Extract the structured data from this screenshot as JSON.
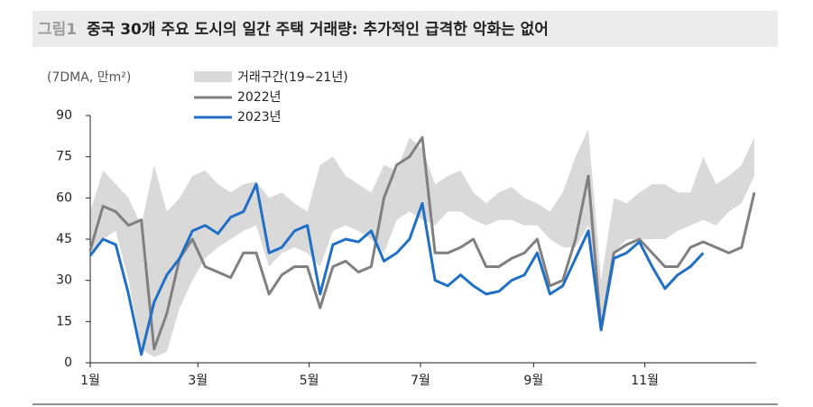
{
  "chart_data": {
    "type": "line",
    "figure_label": "그림1",
    "title": "중국 30개 주요 도시의 일간 주택 거래량: 추가적인 급격한 악화는 없어",
    "y_label": "(7DMA, 만m²)",
    "x": [
      0,
      7,
      14,
      21,
      28,
      35,
      42,
      49,
      56,
      63,
      70,
      77,
      84,
      91,
      98,
      105,
      112,
      119,
      126,
      133,
      140,
      147,
      154,
      161,
      168,
      175,
      182,
      189,
      196,
      203,
      210,
      217,
      224,
      231,
      238,
      245,
      252,
      259,
      266,
      273,
      280,
      287,
      294,
      301,
      308,
      315,
      322,
      329,
      336,
      343,
      350,
      357,
      364
    ],
    "band": {
      "name": "거래구간(19~21년)",
      "color": "#d9d9d9",
      "upper": [
        55,
        70,
        65,
        60,
        50,
        72,
        55,
        60,
        68,
        70,
        65,
        62,
        65,
        66,
        60,
        62,
        58,
        55,
        72,
        75,
        68,
        65,
        62,
        72,
        70,
        82,
        78,
        65,
        68,
        70,
        62,
        58,
        62,
        64,
        60,
        58,
        55,
        62,
        75,
        85,
        30,
        60,
        58,
        62,
        65,
        65,
        62,
        62,
        75,
        65,
        68,
        72,
        82
      ],
      "lower": [
        40,
        45,
        48,
        30,
        5,
        2,
        4,
        20,
        30,
        38,
        42,
        45,
        48,
        50,
        35,
        40,
        42,
        40,
        35,
        48,
        50,
        48,
        45,
        40,
        52,
        55,
        52,
        50,
        55,
        55,
        52,
        50,
        52,
        52,
        50,
        50,
        45,
        42,
        42,
        50,
        10,
        40,
        45,
        45,
        45,
        45,
        48,
        50,
        52,
        50,
        55,
        58,
        68
      ]
    },
    "series": [
      {
        "name": "2022년",
        "color": "#808080",
        "values": [
          41,
          57,
          55,
          50,
          52,
          5,
          18,
          38,
          45,
          35,
          33,
          31,
          40,
          40,
          25,
          32,
          35,
          35,
          20,
          35,
          37,
          33,
          35,
          60,
          72,
          75,
          82,
          40,
          40,
          42,
          45,
          35,
          35,
          38,
          40,
          45,
          28,
          30,
          45,
          68,
          12,
          40,
          43,
          45,
          40,
          35,
          35,
          42,
          44,
          42,
          40,
          42,
          62
        ]
      },
      {
        "name": "2023년",
        "color": "#1f6fc6",
        "values": [
          39,
          45,
          43,
          25,
          3,
          22,
          32,
          38,
          48,
          50,
          47,
          53,
          55,
          65,
          40,
          42,
          48,
          50,
          25,
          43,
          45,
          44,
          48,
          37,
          40,
          45,
          58,
          30,
          28,
          32,
          28,
          25,
          26,
          30,
          32,
          40,
          25,
          28,
          38,
          48,
          12,
          38,
          40,
          44,
          35,
          27,
          32,
          35,
          40,
          null,
          null,
          null,
          null
        ]
      }
    ],
    "xlim": [
      0,
      365
    ],
    "xticks": [
      {
        "value": 0,
        "label": "1월"
      },
      {
        "value": 59,
        "label": "3월"
      },
      {
        "value": 120,
        "label": "5월"
      },
      {
        "value": 181,
        "label": "7월"
      },
      {
        "value": 243,
        "label": "9월"
      },
      {
        "value": 304,
        "label": "11월"
      }
    ],
    "ylim": [
      0,
      90
    ],
    "yticks": [
      0,
      15,
      30,
      45,
      60,
      75,
      90
    ]
  }
}
